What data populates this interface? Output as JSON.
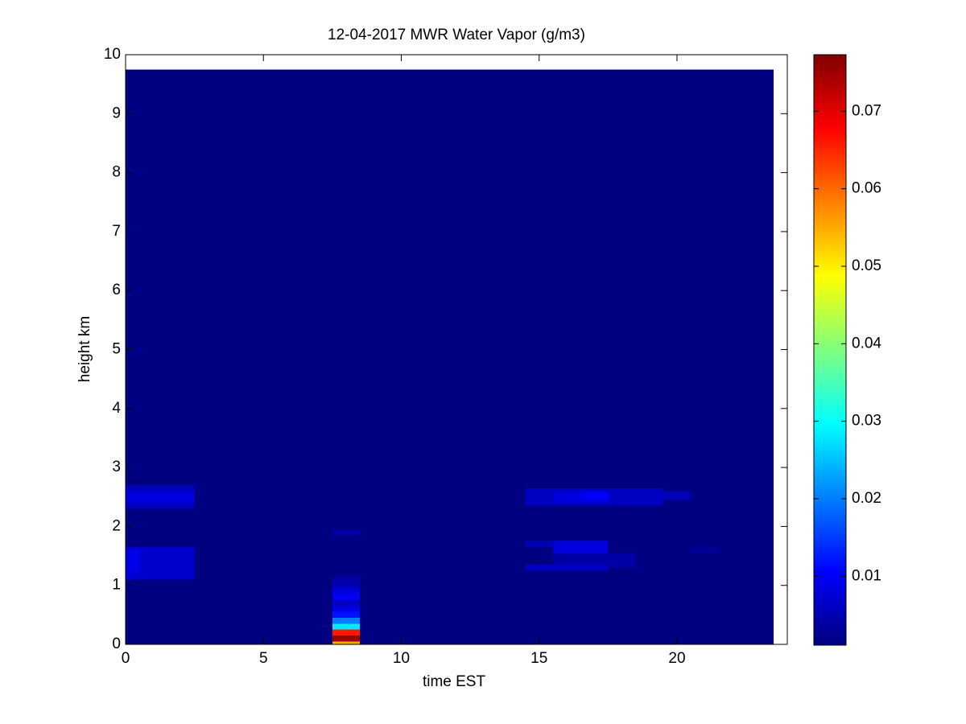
{
  "chart_data": {
    "type": "heatmap",
    "title": "12-04-2017 MWR Water Vapor (g/m3)",
    "x_label": "time EST",
    "y_label": "height km",
    "xlim": [
      0,
      24
    ],
    "xticks": [
      0,
      5,
      10,
      15,
      20
    ],
    "ylim": [
      0,
      10
    ],
    "yticks": [
      0,
      1,
      2,
      3,
      4,
      5,
      6,
      7,
      8,
      9,
      10
    ],
    "colormap": "jet",
    "clim": [
      0.0011,
      0.0773
    ],
    "cticks": [
      0.01,
      0.02,
      0.03,
      0.04,
      0.05,
      0.06,
      0.07
    ],
    "cells": [
      {
        "x": [
          0,
          23.5
        ],
        "y": [
          0,
          9.75
        ],
        "value": 0.0012
      },
      {
        "x": [
          0,
          2.5
        ],
        "y": [
          2.3,
          2.7
        ],
        "value": 0.006
      },
      {
        "x": [
          0,
          2.5
        ],
        "y": [
          2.4,
          2.6
        ],
        "value": 0.008
      },
      {
        "x": [
          0,
          2.5
        ],
        "y": [
          1.1,
          1.65
        ],
        "value": 0.007
      },
      {
        "x": [
          0,
          0.5
        ],
        "y": [
          1.2,
          1.6
        ],
        "value": 0.009
      },
      {
        "x": [
          7.5,
          8.5
        ],
        "y": [
          0,
          0.05
        ],
        "value": 0.055
      },
      {
        "x": [
          7.5,
          8.5
        ],
        "y": [
          0.05,
          0.15
        ],
        "value": 0.075
      },
      {
        "x": [
          7.5,
          8.5
        ],
        "y": [
          0.15,
          0.25
        ],
        "value": 0.066
      },
      {
        "x": [
          7.5,
          8.5
        ],
        "y": [
          0.25,
          0.35
        ],
        "value": 0.028
      },
      {
        "x": [
          7.5,
          8.5
        ],
        "y": [
          0.35,
          0.45
        ],
        "value": 0.02
      },
      {
        "x": [
          7.5,
          8.5
        ],
        "y": [
          0.45,
          0.55
        ],
        "value": 0.012
      },
      {
        "x": [
          7.5,
          8.5
        ],
        "y": [
          0.55,
          0.65
        ],
        "value": 0.009
      },
      {
        "x": [
          7.5,
          8.5
        ],
        "y": [
          0.65,
          0.75
        ],
        "value": 0.006
      },
      {
        "x": [
          7.5,
          8.5
        ],
        "y": [
          0.75,
          0.85
        ],
        "value": 0.01
      },
      {
        "x": [
          7.5,
          8.5
        ],
        "y": [
          0.85,
          0.95
        ],
        "value": 0.008
      },
      {
        "x": [
          7.5,
          8.5
        ],
        "y": [
          0.95,
          1.05
        ],
        "value": 0.005
      },
      {
        "x": [
          7.5,
          8.5
        ],
        "y": [
          1.05,
          1.15
        ],
        "value": 0.004
      },
      {
        "x": [
          7.5,
          8.5
        ],
        "y": [
          1.85,
          1.95
        ],
        "value": 0.004
      },
      {
        "x": [
          14.5,
          19.5
        ],
        "y": [
          2.35,
          2.65
        ],
        "value": 0.006
      },
      {
        "x": [
          15.5,
          17.5
        ],
        "y": [
          2.4,
          2.6
        ],
        "value": 0.008
      },
      {
        "x": [
          16.5,
          17.5
        ],
        "y": [
          2.45,
          2.6
        ],
        "value": 0.01
      },
      {
        "x": [
          19.5,
          20.5
        ],
        "y": [
          2.45,
          2.6
        ],
        "value": 0.005
      },
      {
        "x": [
          14.5,
          15.5
        ],
        "y": [
          1.65,
          1.75
        ],
        "value": 0.005
      },
      {
        "x": [
          15.5,
          17.5
        ],
        "y": [
          1.55,
          1.75
        ],
        "value": 0.008
      },
      {
        "x": [
          15.5,
          18.5
        ],
        "y": [
          1.3,
          1.55
        ],
        "value": 0.004
      },
      {
        "x": [
          14.5,
          17.5
        ],
        "y": [
          1.25,
          1.35
        ],
        "value": 0.006
      },
      {
        "x": [
          20.5,
          21.5
        ],
        "y": [
          1.55,
          1.65
        ],
        "value": 0.003
      }
    ]
  }
}
